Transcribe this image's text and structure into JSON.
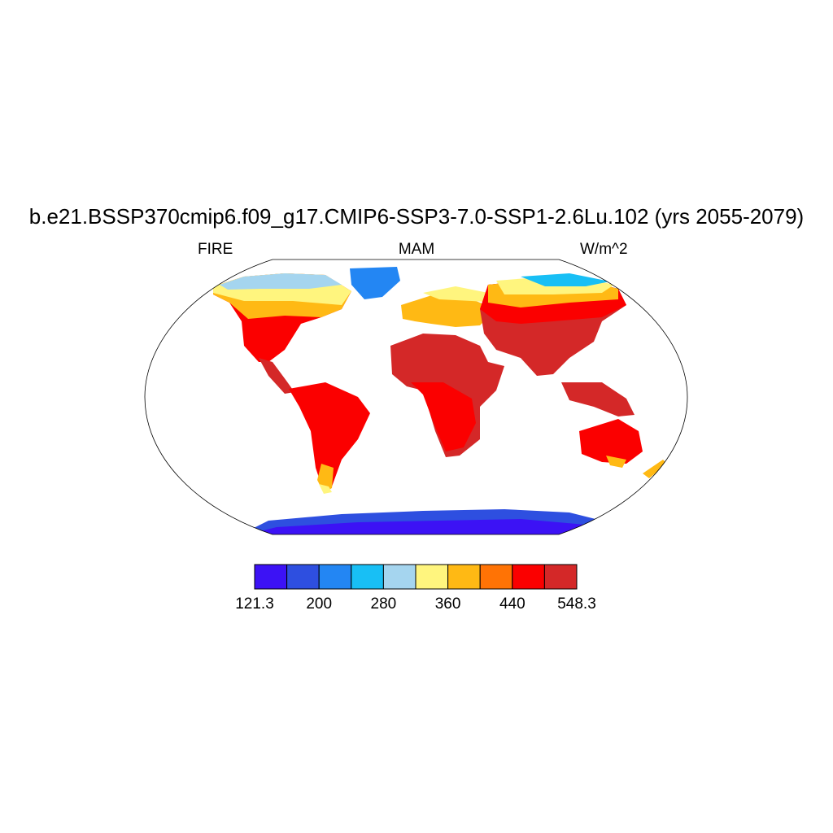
{
  "title": "b.e21.BSSP370cmip6.f09_g17.CMIP6-SSP3-7.0-SSP1-2.6Lu.102 (yrs 2055-2079)",
  "left_label": "FIRE",
  "center_label": "MAM",
  "right_label": "W/m^2",
  "colorbar": {
    "colors": [
      "#3c12f5",
      "#2e4fe0",
      "#2386f3",
      "#18bff5",
      "#a5d5ef",
      "#fff57e",
      "#ffb914",
      "#ff7305",
      "#fb0000",
      "#d42828"
    ],
    "labels": [
      "121.3",
      "200",
      "280",
      "360",
      "440",
      "548.3"
    ]
  },
  "map_data": {
    "projection": "Robinson",
    "variable": "FIRE",
    "units": "W/m^2",
    "season": "MAM",
    "min": 121.3,
    "max": 548.3
  }
}
